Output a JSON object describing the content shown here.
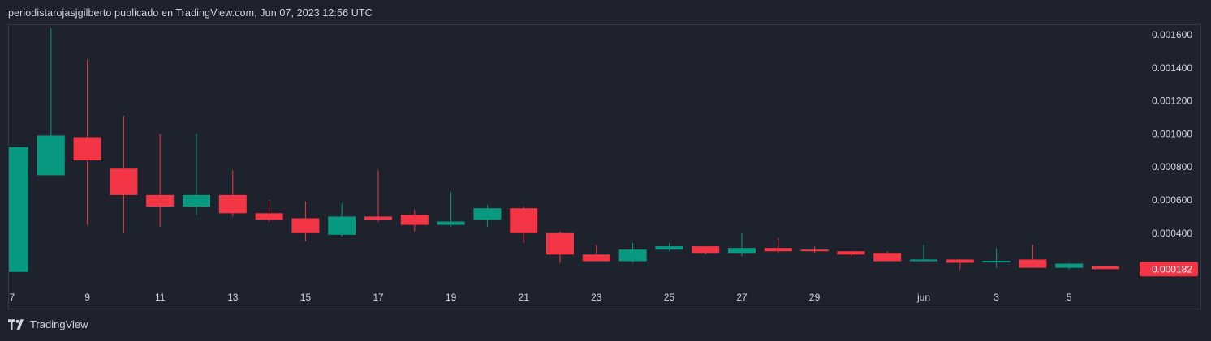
{
  "header": {
    "caption": "periodistarojasjgilberto publicado en TradingView.com, Jun 07, 2023 12:56 UTC"
  },
  "footer": {
    "brand": "TradingView",
    "icon": "tradingview-logo-icon"
  },
  "colors": {
    "up": "#089981",
    "down": "#f23645",
    "background": "#1e222d",
    "text": "#d1d4dc",
    "border": "#363a45"
  },
  "chart_data": {
    "type": "candlestick",
    "title": "",
    "xlabel": "",
    "ylabel": "",
    "ylim": [
      0.00016,
      0.00165
    ],
    "y_ticks": [
      "0.001600",
      "0.001400",
      "0.001200",
      "0.001000",
      "0.000800",
      "0.000600",
      "0.000400"
    ],
    "x_ticks": [
      {
        "label": "7",
        "i": 0
      },
      {
        "label": "9",
        "i": 2
      },
      {
        "label": "11",
        "i": 4
      },
      {
        "label": "13",
        "i": 6
      },
      {
        "label": "15",
        "i": 8
      },
      {
        "label": "17",
        "i": 10
      },
      {
        "label": "19",
        "i": 12
      },
      {
        "label": "21",
        "i": 14
      },
      {
        "label": "23",
        "i": 16
      },
      {
        "label": "25",
        "i": 18
      },
      {
        "label": "27",
        "i": 20
      },
      {
        "label": "29",
        "i": 22
      },
      {
        "label": "jun",
        "i": 25
      },
      {
        "label": "3",
        "i": 27
      },
      {
        "label": "5",
        "i": 29
      }
    ],
    "last_price_label": "0.000182",
    "candles": [
      {
        "o": 0.000165,
        "h": 0.00092,
        "l": 0.000165,
        "c": 0.00092
      },
      {
        "o": 0.00075,
        "h": 0.00164,
        "l": 0.00075,
        "c": 0.00099
      },
      {
        "o": 0.00098,
        "h": 0.00145,
        "l": 0.00045,
        "c": 0.00084
      },
      {
        "o": 0.00079,
        "h": 0.00111,
        "l": 0.0004,
        "c": 0.00063
      },
      {
        "o": 0.00063,
        "h": 0.001,
        "l": 0.00044,
        "c": 0.00056
      },
      {
        "o": 0.00056,
        "h": 0.001,
        "l": 0.00051,
        "c": 0.00063
      },
      {
        "o": 0.00063,
        "h": 0.00078,
        "l": 0.0005,
        "c": 0.00052
      },
      {
        "o": 0.00052,
        "h": 0.0006,
        "l": 0.00047,
        "c": 0.00048
      },
      {
        "o": 0.00049,
        "h": 0.00059,
        "l": 0.00035,
        "c": 0.0004
      },
      {
        "o": 0.00039,
        "h": 0.00058,
        "l": 0.00038,
        "c": 0.0005
      },
      {
        "o": 0.0005,
        "h": 0.00078,
        "l": 0.00047,
        "c": 0.00048
      },
      {
        "o": 0.00051,
        "h": 0.00054,
        "l": 0.00041,
        "c": 0.00045
      },
      {
        "o": 0.00045,
        "h": 0.00065,
        "l": 0.00044,
        "c": 0.00047
      },
      {
        "o": 0.00048,
        "h": 0.00057,
        "l": 0.00044,
        "c": 0.00055
      },
      {
        "o": 0.00055,
        "h": 0.00056,
        "l": 0.00034,
        "c": 0.0004
      },
      {
        "o": 0.0004,
        "h": 0.00041,
        "l": 0.00022,
        "c": 0.00027
      },
      {
        "o": 0.00027,
        "h": 0.00033,
        "l": 0.00023,
        "c": 0.00023
      },
      {
        "o": 0.00023,
        "h": 0.00034,
        "l": 0.00022,
        "c": 0.0003
      },
      {
        "o": 0.0003,
        "h": 0.00034,
        "l": 0.00029,
        "c": 0.00032
      },
      {
        "o": 0.00032,
        "h": 0.00032,
        "l": 0.00027,
        "c": 0.00028
      },
      {
        "o": 0.00028,
        "h": 0.0004,
        "l": 0.00026,
        "c": 0.00031
      },
      {
        "o": 0.00031,
        "h": 0.00037,
        "l": 0.00028,
        "c": 0.00029
      },
      {
        "o": 0.0003,
        "h": 0.00032,
        "l": 0.00028,
        "c": 0.00029
      },
      {
        "o": 0.00029,
        "h": 0.00029,
        "l": 0.00026,
        "c": 0.00027
      },
      {
        "o": 0.00028,
        "h": 0.00029,
        "l": 0.00023,
        "c": 0.00023
      },
      {
        "o": 0.00023,
        "h": 0.00033,
        "l": 0.00023,
        "c": 0.00024
      },
      {
        "o": 0.00024,
        "h": 0.00024,
        "l": 0.00018,
        "c": 0.00022
      },
      {
        "o": 0.00023,
        "h": 0.00031,
        "l": 0.00019,
        "c": 0.000232
      },
      {
        "o": 0.00024,
        "h": 0.00033,
        "l": 0.00019,
        "c": 0.00019
      },
      {
        "o": 0.00019,
        "h": 0.00022,
        "l": 0.00018,
        "c": 0.000215
      },
      {
        "o": 0.0002,
        "h": 0.0002,
        "l": 0.000182,
        "c": 0.000182
      }
    ]
  }
}
